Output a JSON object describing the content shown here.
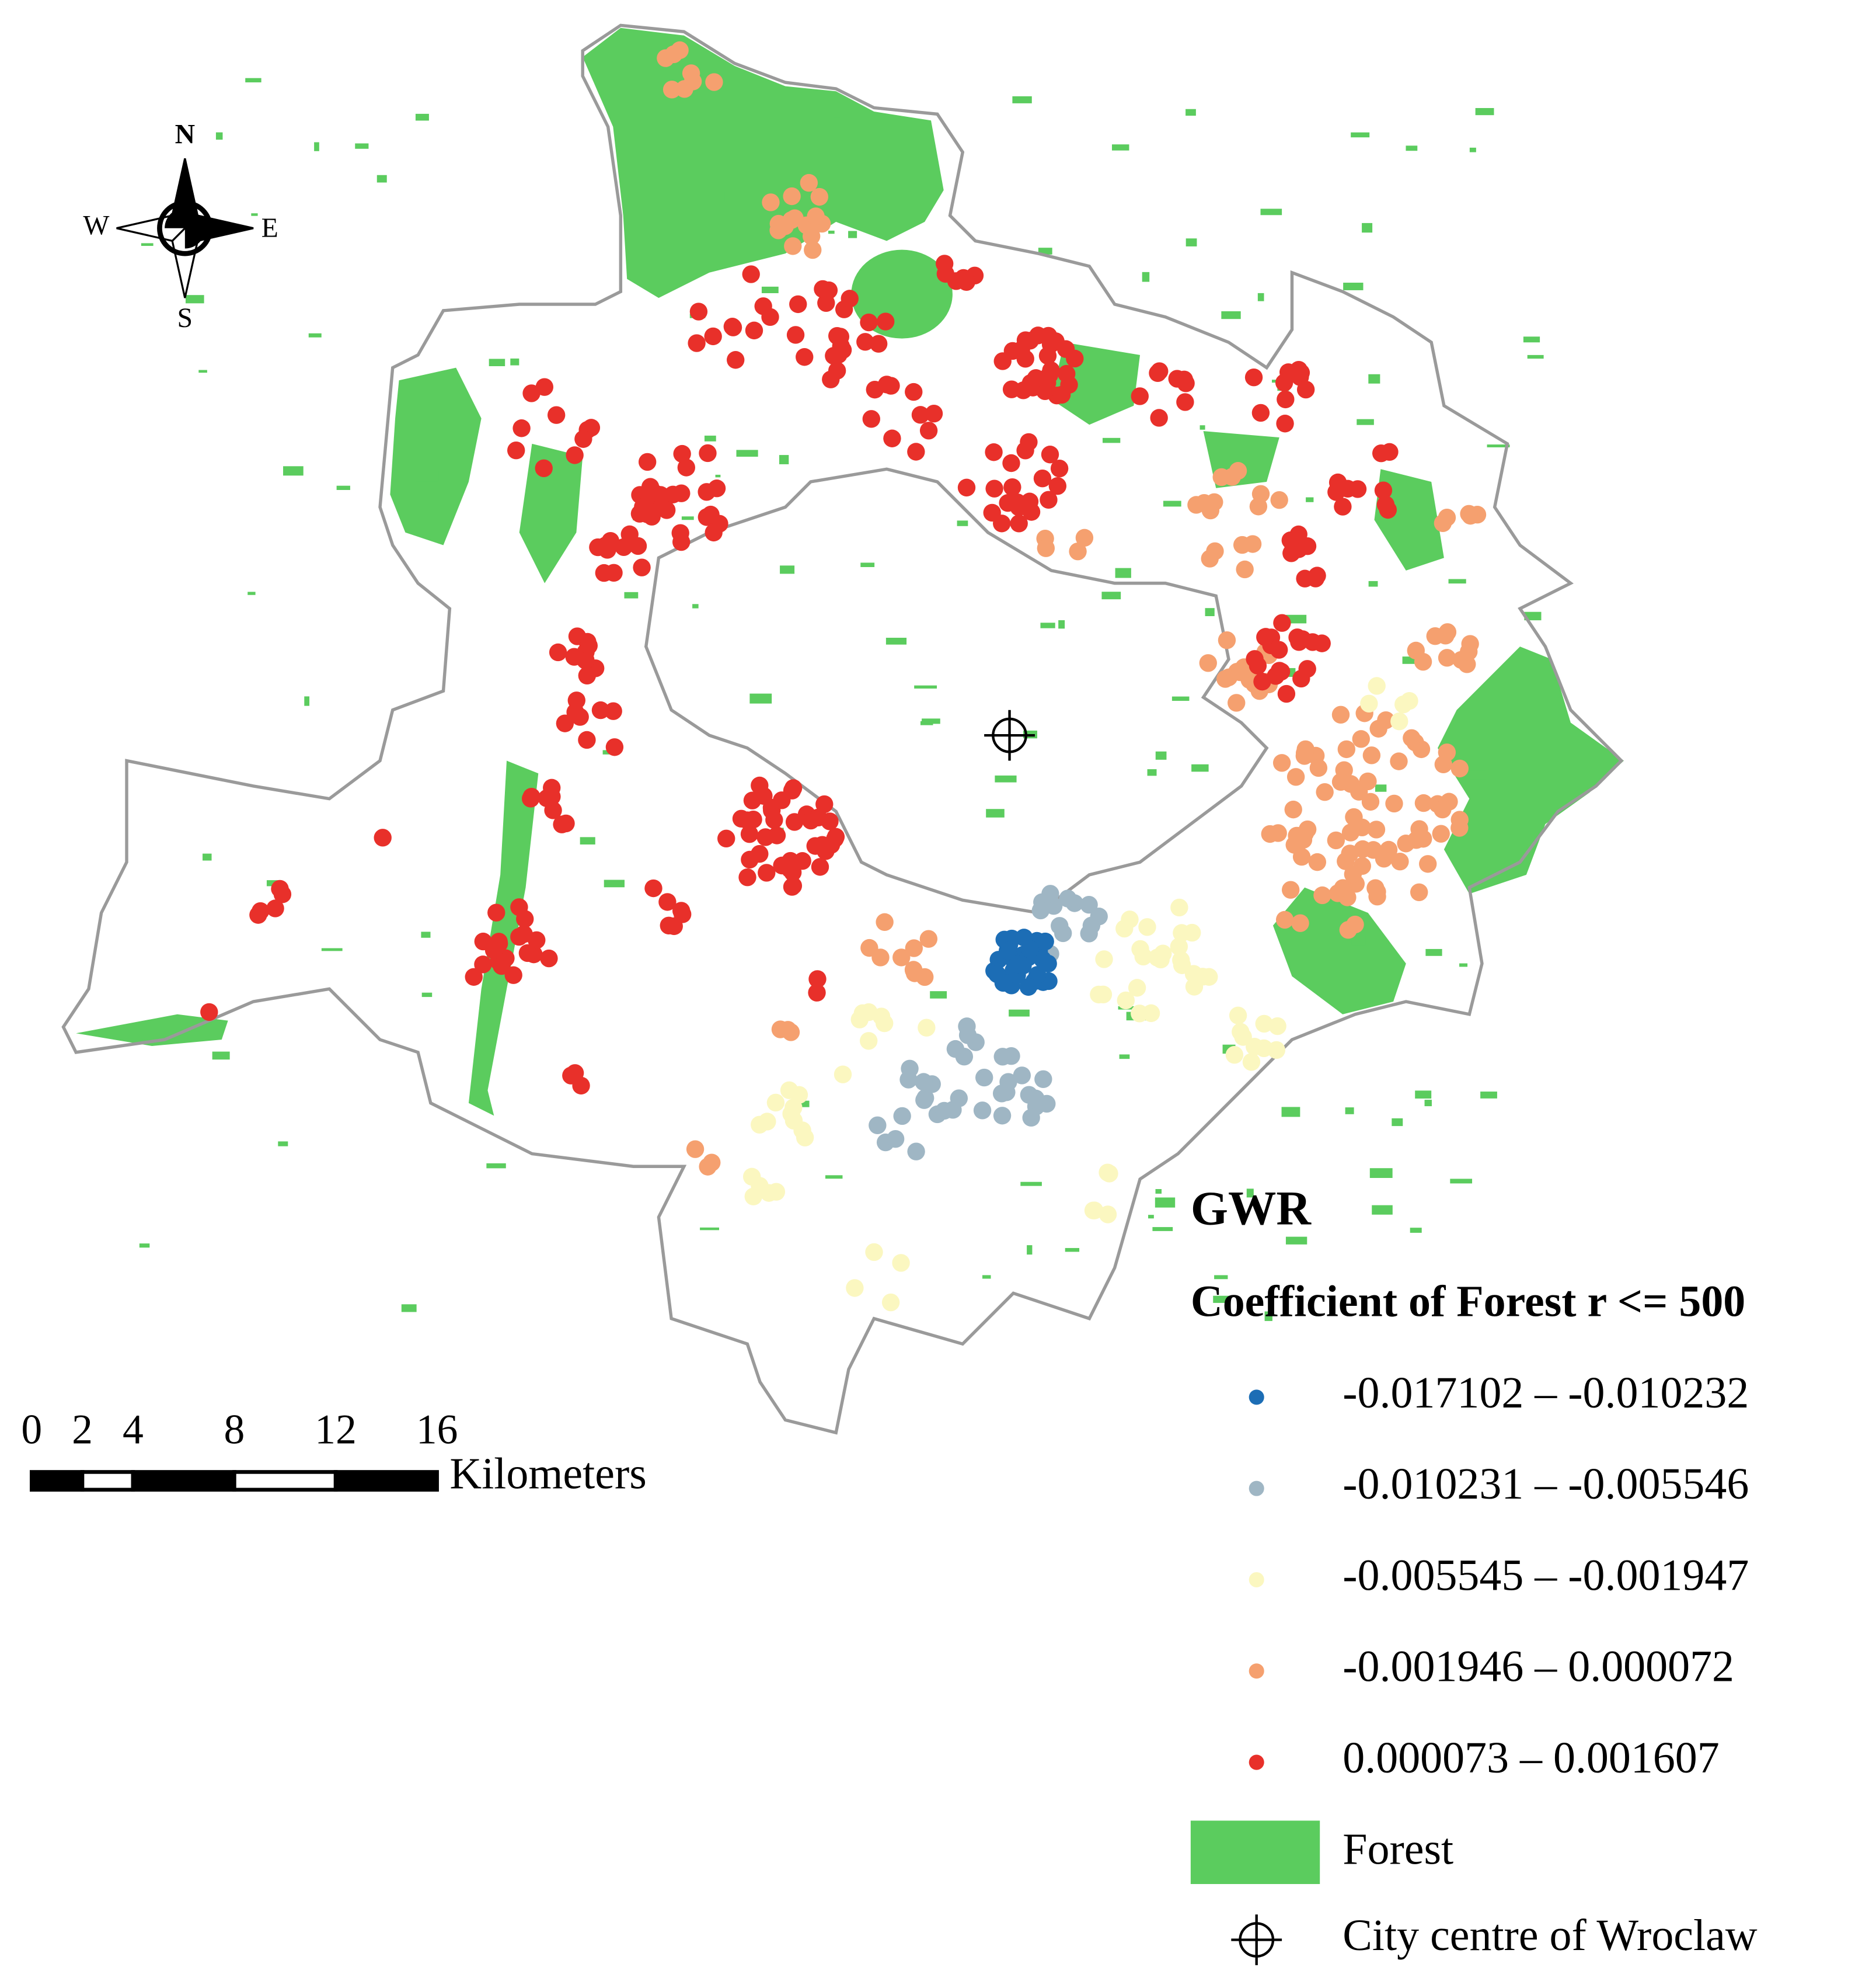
{
  "compass": {
    "north": "N",
    "west": "W",
    "east": "E",
    "south": "S"
  },
  "scale_bar": {
    "ticks": [
      0,
      2,
      4,
      8,
      12,
      16
    ],
    "unit": "Kilometers"
  },
  "legend": {
    "title": "GWR",
    "subtitle": "Coefficient of Forest r <= 500",
    "classes": [
      {
        "label": "-0.017102 – -0.010232",
        "color": "#1c6db5"
      },
      {
        "label": "-0.010231 – -0.005546",
        "color": "#9fb6c4"
      },
      {
        "label": "-0.005545 – -0.001947",
        "color": "#fbf7c0"
      },
      {
        "label": "-0.001946 – 0.000072",
        "color": "#f5a06f"
      },
      {
        "label": "0.000073 – 0.001607",
        "color": "#e8302a"
      }
    ],
    "forest": {
      "label": "Forest",
      "color": "#5bcc5e"
    },
    "city_centre": "City centre of Wroclaw"
  }
}
